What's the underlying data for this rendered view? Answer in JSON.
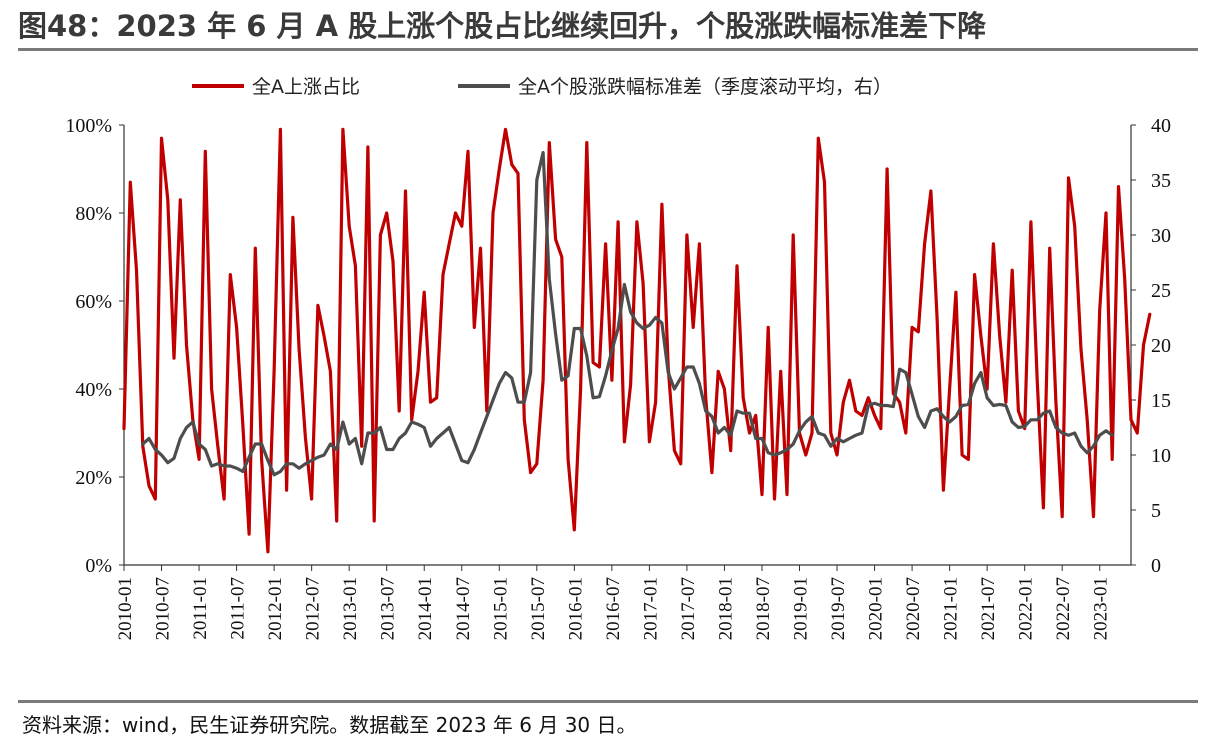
{
  "title": "图48：2023 年 6 月 A 股上涨个股占比继续回升，个股涨跌幅标准差下降",
  "source": "资料来源：wind，民生证券研究院。数据截至 2023 年 6 月 30 日。",
  "colors": {
    "series_red": "#c00000",
    "series_gray": "#4d4d4d",
    "axis": "#333333",
    "rule": "#7a7a7a"
  },
  "chart_data": {
    "type": "line",
    "x_tick_labels": [
      "2010-01",
      "2010-07",
      "2011-01",
      "2011-07",
      "2012-01",
      "2012-07",
      "2013-01",
      "2013-07",
      "2014-01",
      "2014-07",
      "2015-01",
      "2015-07",
      "2016-01",
      "2016-07",
      "2017-01",
      "2017-07",
      "2018-01",
      "2018-07",
      "2019-01",
      "2019-07",
      "2020-01",
      "2020-07",
      "2021-01",
      "2021-07",
      "2022-01",
      "2022-07",
      "2023-01"
    ],
    "y_left": {
      "min": 0,
      "max": 100,
      "ticks": [
        "0%",
        "20%",
        "40%",
        "60%",
        "80%",
        "100%"
      ]
    },
    "y_right": {
      "min": 0,
      "max": 40,
      "ticks": [
        "0",
        "5",
        "10",
        "15",
        "20",
        "25",
        "30",
        "35",
        "40"
      ]
    },
    "grid": false,
    "legend_position": "top-center",
    "series": [
      {
        "name": "全A上涨占比",
        "axis": "left",
        "color": "#c00000",
        "start": "2010-01",
        "values": [
          31,
          87,
          67,
          27,
          18,
          15,
          97,
          83,
          47,
          83,
          50,
          33,
          24,
          94,
          40,
          27,
          15,
          66,
          54,
          32,
          7,
          72,
          24,
          3,
          44,
          99,
          17,
          79,
          49,
          29,
          15,
          59,
          52,
          44,
          10,
          99,
          77,
          68,
          27,
          95,
          10,
          75,
          80,
          69,
          35,
          85,
          33,
          44,
          62,
          37,
          38,
          66,
          73,
          80,
          77,
          94,
          54,
          72,
          35,
          80,
          90,
          99,
          91,
          89,
          33,
          21,
          23,
          42,
          96,
          74,
          70,
          24,
          8,
          40,
          96,
          46,
          45,
          73,
          42,
          78,
          28,
          41,
          78,
          64,
          28,
          37,
          82,
          45,
          26,
          23,
          75,
          54,
          73,
          38,
          21,
          44,
          40,
          26,
          68,
          38,
          30,
          34,
          16,
          54,
          15,
          44,
          16,
          75,
          30,
          25,
          30,
          97,
          87,
          30,
          25,
          37,
          42,
          35,
          34,
          38,
          34,
          31,
          90,
          39,
          37,
          30,
          54,
          53,
          73,
          85,
          56,
          17,
          40,
          62,
          25,
          24,
          66,
          52,
          40,
          73,
          52,
          37,
          67,
          35,
          31,
          78,
          42,
          13,
          72,
          37,
          11,
          88,
          77,
          49,
          33,
          11,
          58,
          80,
          24,
          86,
          65,
          33,
          30,
          50,
          57
        ]
      },
      {
        "name": "全A个股涨跌幅标准差（季度滚动平均，右）",
        "axis": "right",
        "color": "#4d4d4d",
        "start": "2010-04",
        "values": [
          11,
          11.5,
          10.5,
          10,
          9.3,
          9.7,
          11.5,
          12.5,
          13,
          11,
          10.5,
          9,
          9.2,
          9,
          9,
          8.8,
          8.5,
          9.8,
          11,
          11,
          9.5,
          8.2,
          8.5,
          9.2,
          9.2,
          8.8,
          9.2,
          9.5,
          9.8,
          10,
          11,
          10.5,
          13,
          11,
          11.5,
          9.2,
          12,
          12,
          12.5,
          10.5,
          10.5,
          11.5,
          12,
          13,
          12.8,
          12.5,
          10.8,
          11.5,
          12,
          12.5,
          11,
          9.5,
          9.3,
          10.5,
          12,
          13.5,
          15,
          16.5,
          17.5,
          17,
          14.8,
          14.8,
          17.5,
          35,
          37.5,
          26,
          21,
          16.8,
          17.2,
          21.5,
          21.5,
          19,
          15.2,
          15.3,
          17.2,
          19.5,
          21.5,
          25.5,
          23,
          22,
          21.5,
          21.8,
          22.5,
          22,
          17.5,
          16,
          17,
          18,
          18,
          16.5,
          14,
          13.5,
          12,
          12.5,
          11.8,
          14,
          13.8,
          13.8,
          11.5,
          11.5,
          10.2,
          10,
          10.2,
          10.5,
          11,
          12.2,
          13,
          13.5,
          12,
          11.8,
          10.8,
          11.5,
          11.2,
          11.5,
          11.8,
          12,
          14.5,
          14.7,
          14.5,
          14.5,
          14.4,
          17.8,
          17.5,
          15.5,
          13.5,
          12.5,
          14,
          14.2,
          13.5,
          13,
          13.5,
          14.5,
          14.6,
          16.5,
          17.5,
          15.2,
          14.5,
          14.6,
          14.5,
          13,
          12.5,
          12.6,
          13.2,
          13.2,
          13.8,
          14,
          12.5,
          12,
          11.8,
          12,
          10.8,
          10.2,
          10.8,
          11.8,
          12.2,
          11.8
        ]
      }
    ]
  }
}
